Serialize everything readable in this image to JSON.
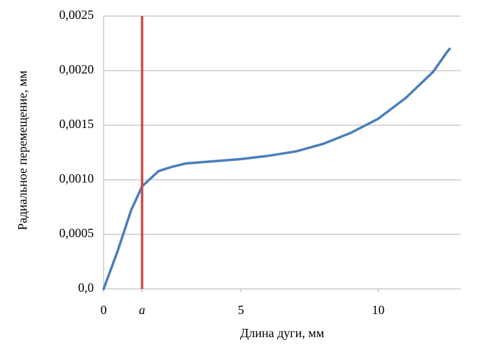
{
  "chart_data": {
    "type": "line",
    "x_label": "Длина дуги, мм",
    "y_label": "Радиальное перемещение, мм",
    "x": [
      0,
      0.5,
      1,
      1.4,
      2,
      2.5,
      3,
      4,
      5,
      6,
      7,
      8,
      9,
      10,
      11,
      12,
      12.5,
      12.6
    ],
    "values": [
      0,
      0.00034,
      0.00072,
      0.00094,
      0.00108,
      0.00112,
      0.00115,
      0.00117,
      0.00119,
      0.00122,
      0.00126,
      0.00133,
      0.00143,
      0.00156,
      0.00175,
      0.00199,
      0.00217,
      0.0022
    ],
    "color": "#4a7ebb",
    "vline": {
      "x": 1.4,
      "color": "#c0504d"
    },
    "xlim": [
      0,
      13
    ],
    "ylim": [
      0,
      0.0025
    ],
    "xticks": [
      0,
      {
        "value": 1.4,
        "label": "a"
      },
      5,
      10
    ],
    "yticks": [
      {
        "value": 0,
        "label": "0,0"
      },
      {
        "value": 0.0005,
        "label": "0,0005"
      },
      {
        "value": 0.001,
        "label": "0,0010"
      },
      {
        "value": 0.0015,
        "label": "0,0015"
      },
      {
        "value": 0.002,
        "label": "0,0020"
      },
      {
        "value": 0.0025,
        "label": "0,0025"
      }
    ],
    "grid": true
  }
}
